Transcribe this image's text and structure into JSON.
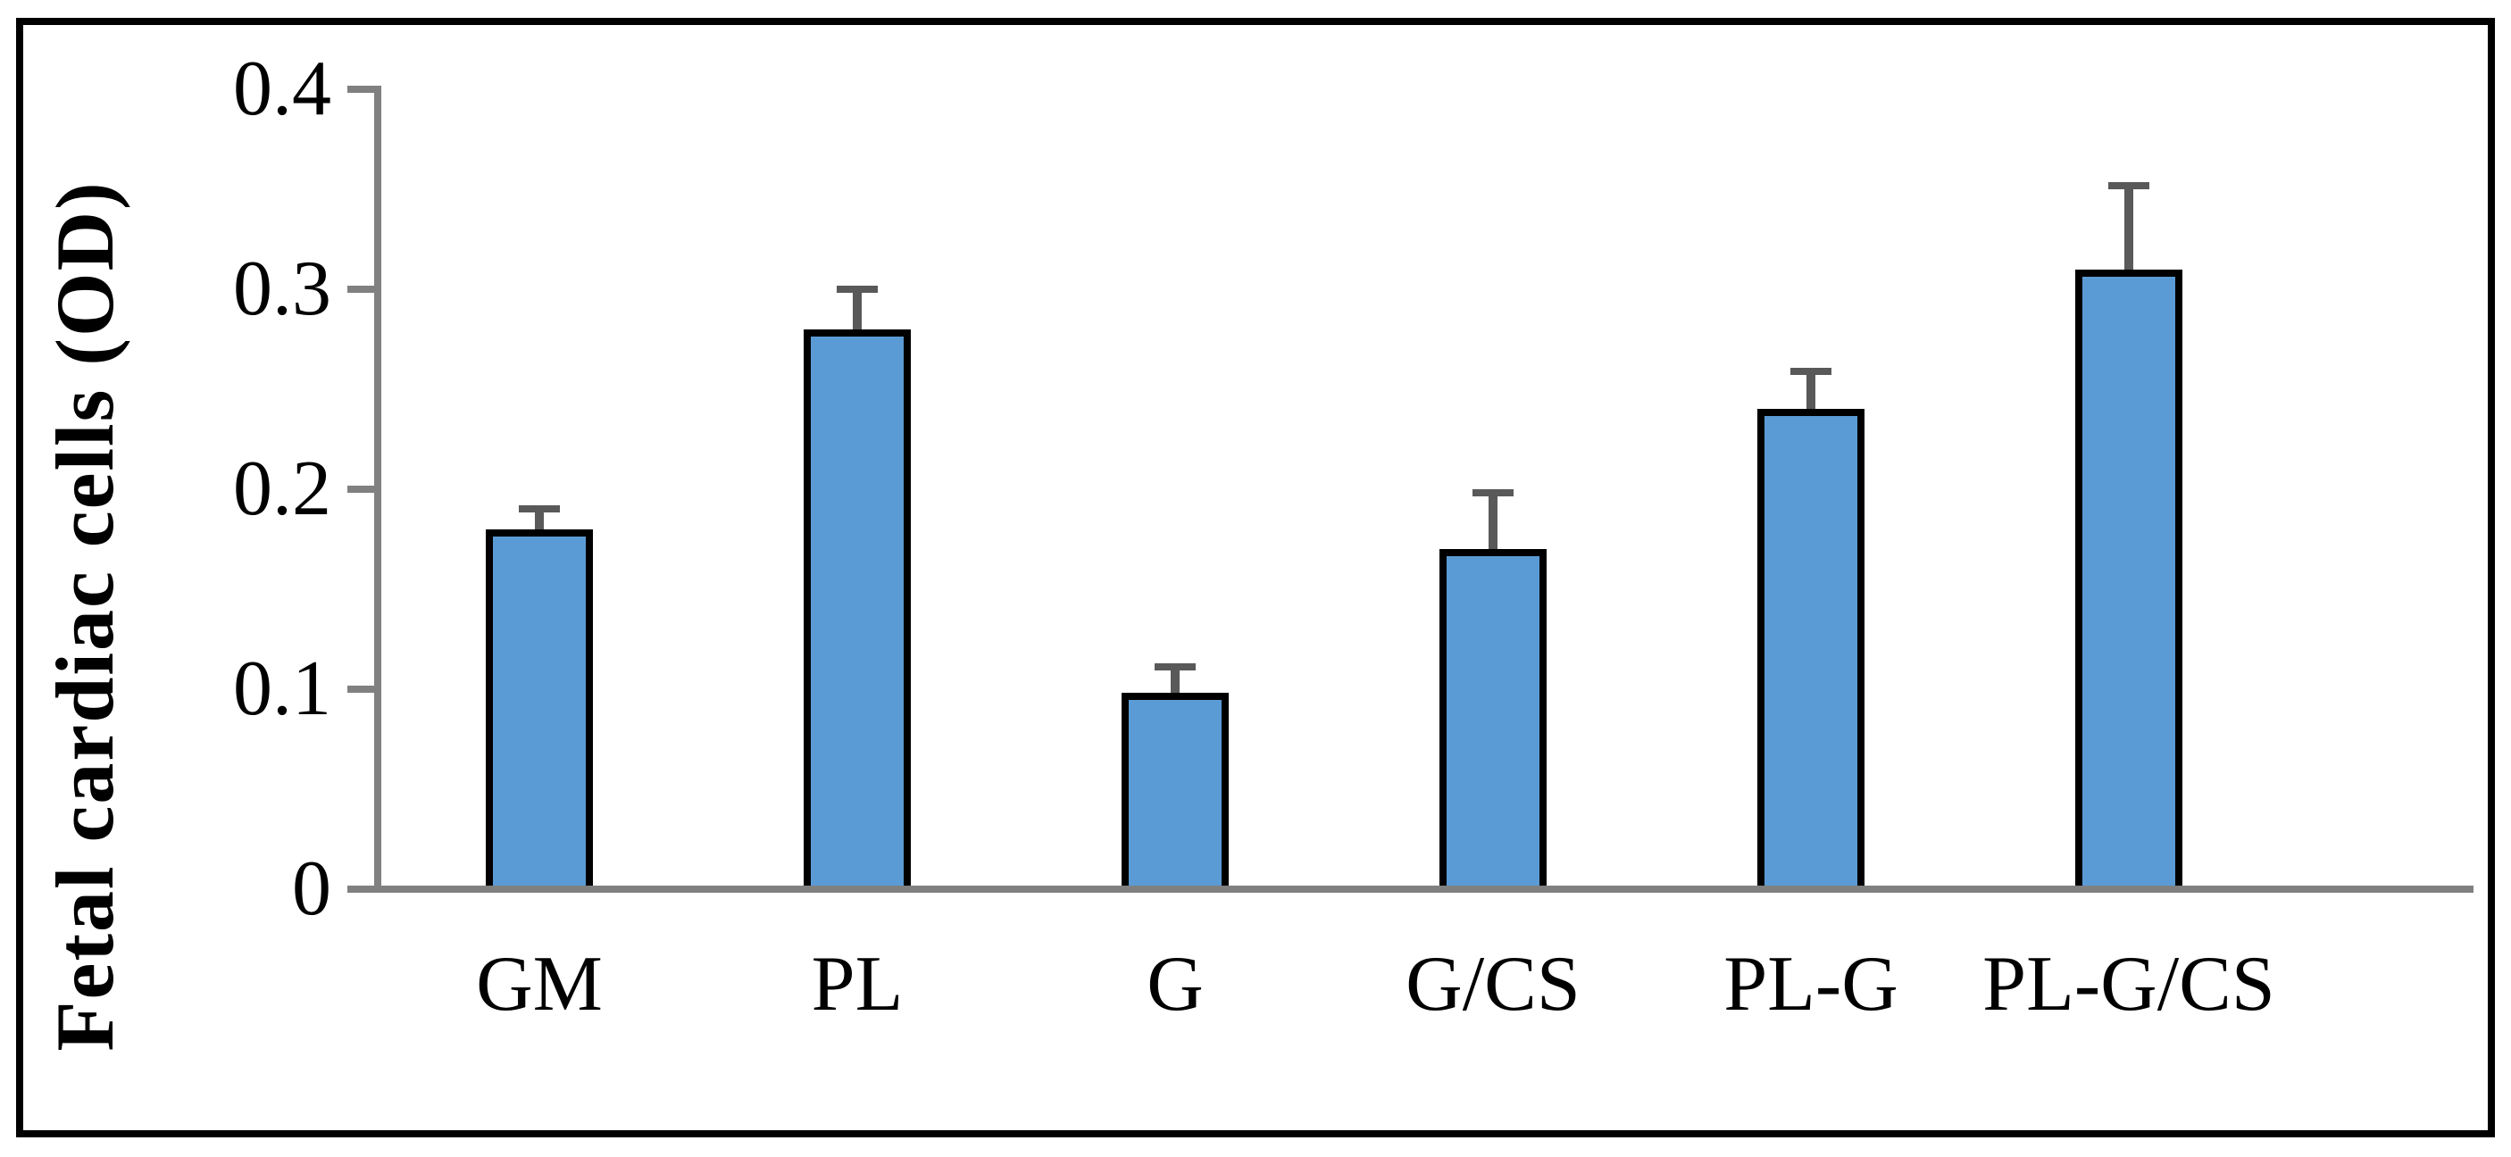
{
  "figure": {
    "background": "#ffffff",
    "frame_color": "#000000"
  },
  "chart_data": {
    "type": "bar",
    "title": "",
    "xlabel": "",
    "ylabel": "Fetal cardiac cells (OD)",
    "categories": [
      "GM",
      "PL",
      "G",
      "G/CS",
      "PL-G",
      "PL-G/CS"
    ],
    "values": [
      0.18,
      0.28,
      0.098,
      0.17,
      0.24,
      0.31
    ],
    "errors_upper": [
      0.01,
      0.02,
      0.013,
      0.028,
      0.019,
      0.042
    ],
    "ylim": [
      0,
      0.4
    ],
    "ytick_values": [
      0,
      0.1,
      0.2,
      0.3,
      0.4
    ],
    "ytick_labels": [
      "0",
      "0.1",
      "0.2",
      "0.3",
      "0.4"
    ],
    "grid": false,
    "legend_position": "none",
    "error_bars": "upper-only",
    "colors": {
      "bar_fill": "#5B9BD5",
      "bar_border": "#000000",
      "error_bar": "#595959",
      "axis": "#808080",
      "text": "#000000"
    }
  }
}
